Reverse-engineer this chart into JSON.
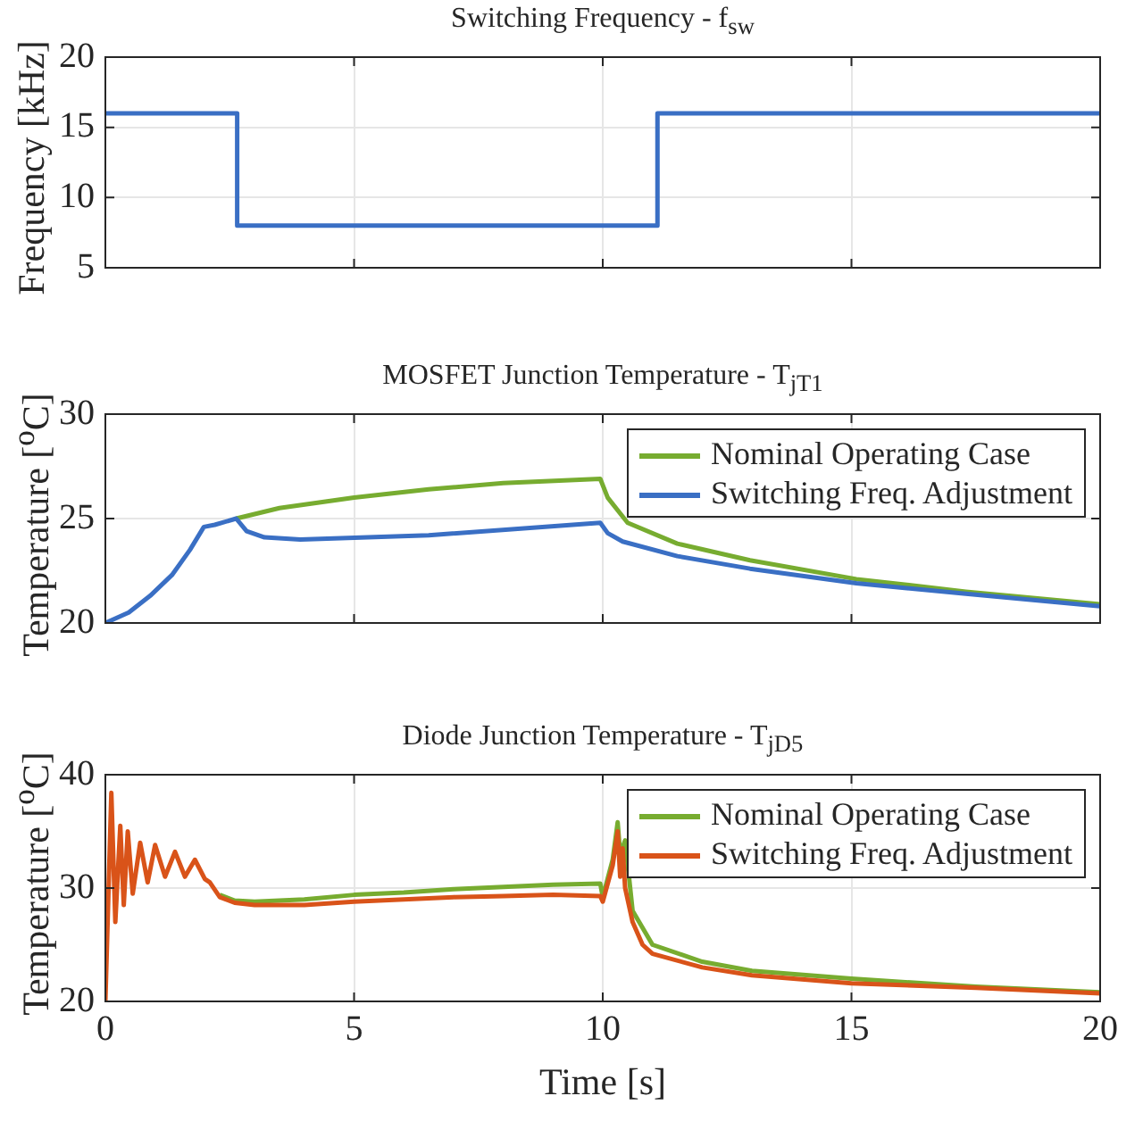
{
  "chart_data": [
    {
      "type": "step",
      "title": "Switching Frequency - f$_{sw}$",
      "ylabel": "Frequency [kHz]",
      "xlim": [
        0,
        20
      ],
      "xticks": [
        0,
        5,
        10,
        15,
        20
      ],
      "ylim": [
        5,
        20
      ],
      "yticks": [
        5,
        10,
        15,
        20
      ],
      "grid": true,
      "tick_labels": "y",
      "legend": false,
      "series": [
        {
          "color": "#3a6fc4",
          "x": [
            0,
            2.65,
            11.1,
            20
          ],
          "values": [
            16,
            8,
            16,
            16
          ]
        }
      ]
    },
    {
      "type": "line",
      "title": "MOSFET Junction Temperature - T$_{jT1}$",
      "ylabel": "Temperature [$^{o}$C]",
      "xlim": [
        0,
        20
      ],
      "xticks": [
        0,
        5,
        10,
        15,
        20
      ],
      "ylim": [
        20,
        30
      ],
      "yticks": [
        20,
        25,
        30
      ],
      "grid": true,
      "tick_labels": "y",
      "legend": "top right",
      "series": [
        {
          "name": "Nominal Operating Case",
          "color": "#77ac30",
          "x": [
            2.63,
            3.5,
            5,
            6.5,
            8,
            9.95,
            10.1,
            10.5,
            11.5,
            12.96,
            15.1,
            17.3,
            20
          ],
          "values": [
            25,
            25.5,
            26,
            26.4,
            26.7,
            26.9,
            26,
            24.8,
            23.8,
            23,
            22.1,
            21.5,
            20.9
          ]
        },
        {
          "name": "Switching Freq. Adjustment",
          "color": "#3a6fc4",
          "x": [
            0,
            0.19,
            0.47,
            0.9,
            1.34,
            1.7,
            1.98,
            2.2,
            2.63,
            2.84,
            3.2,
            3.92,
            6.5,
            9.95,
            10.1,
            10.4,
            11.5,
            12.96,
            15.1,
            17.3,
            20
          ],
          "values": [
            20,
            20.2,
            20.5,
            21.3,
            22.3,
            23.5,
            24.6,
            24.7,
            25,
            24.4,
            24.1,
            24,
            24.2,
            24.8,
            24.3,
            23.9,
            23.2,
            22.6,
            21.9,
            21.4,
            20.8
          ]
        }
      ]
    },
    {
      "type": "line",
      "title": "Diode Junction Temperature - T$_{jD5}$",
      "xlabel": "Time [s]",
      "ylabel": "Temperature [$^{o}$C]",
      "xlim": [
        0,
        20
      ],
      "xticks": [
        0,
        5,
        10,
        15,
        20
      ],
      "ylim": [
        20,
        40
      ],
      "yticks": [
        20,
        30,
        40
      ],
      "grid": true,
      "legend": "top right",
      "series": [
        {
          "name": "Nominal Operating Case",
          "color": "#77ac30",
          "x": [
            2.3,
            2.6,
            3,
            4,
            5,
            6,
            7,
            8,
            9,
            9.95,
            10.0,
            10.2,
            10.3,
            10.35,
            10.45,
            10.6,
            11,
            12,
            13,
            15,
            17.5,
            20
          ],
          "values": [
            29.4,
            28.9,
            28.8,
            29,
            29.4,
            29.6,
            29.9,
            30.1,
            30.3,
            30.4,
            29.2,
            32.5,
            35.8,
            33,
            34.2,
            28,
            25,
            23.5,
            22.7,
            22,
            21.3,
            20.8
          ]
        },
        {
          "name": "Switching Freq. Adjustment",
          "color": "#d95319",
          "x": [
            0,
            0.12,
            0.2,
            0.3,
            0.37,
            0.45,
            0.55,
            0.7,
            0.85,
            1.0,
            1.2,
            1.4,
            1.6,
            1.8,
            2.0,
            2.1,
            2.3,
            2.6,
            3,
            4,
            5,
            6,
            7,
            8,
            9,
            9.95,
            10.0,
            10.2,
            10.3,
            10.35,
            10.4,
            10.45,
            10.6,
            10.8,
            11,
            12,
            13,
            15,
            17.5,
            20
          ],
          "values": [
            20,
            38.4,
            27,
            35.5,
            28.5,
            35,
            29.5,
            34,
            30.5,
            33.8,
            31,
            33.2,
            31,
            32.5,
            30.8,
            30.5,
            29.2,
            28.7,
            28.5,
            28.5,
            28.8,
            29,
            29.2,
            29.3,
            29.4,
            29.3,
            28.8,
            32,
            35,
            31,
            33.5,
            30,
            27,
            25,
            24.2,
            23,
            22.3,
            21.6,
            21.2,
            20.7
          ]
        }
      ]
    }
  ]
}
